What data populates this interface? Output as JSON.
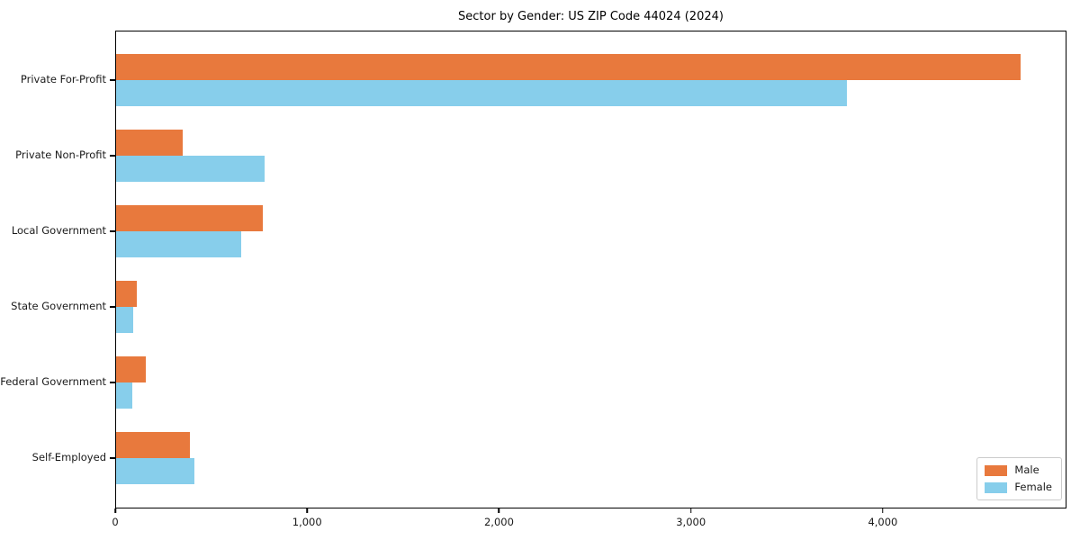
{
  "title": "Sector by Gender: US ZIP Code 44024 (2024)",
  "chart_data": {
    "type": "bar",
    "orientation": "horizontal",
    "title": "Sector by Gender: US ZIP Code 44024 (2024)",
    "categories": [
      "Private For-Profit",
      "Private Non-Profit",
      "Local Government",
      "State Government",
      "Federal Government",
      "Self-Employed"
    ],
    "series": [
      {
        "name": "Male",
        "color": "#e8793d",
        "values": [
          4720,
          347,
          765,
          106,
          156,
          386
        ]
      },
      {
        "name": "Female",
        "color": "#87ceeb",
        "values": [
          3817,
          775,
          652,
          90,
          85,
          411
        ]
      }
    ],
    "xlabel": "",
    "ylabel": "",
    "xlim": [
      0,
      4957
    ],
    "xticks": [
      0,
      1000,
      2000,
      3000,
      4000
    ],
    "xtick_labels": [
      "0",
      "1,000",
      "2,000",
      "3,000",
      "4,000"
    ],
    "legend": {
      "position": "lower right",
      "entries": [
        "Male",
        "Female"
      ]
    },
    "grid": false,
    "colors": {
      "male": "#e8793d",
      "female": "#87ceeb",
      "spine": "#000000",
      "background": "#ffffff"
    }
  }
}
